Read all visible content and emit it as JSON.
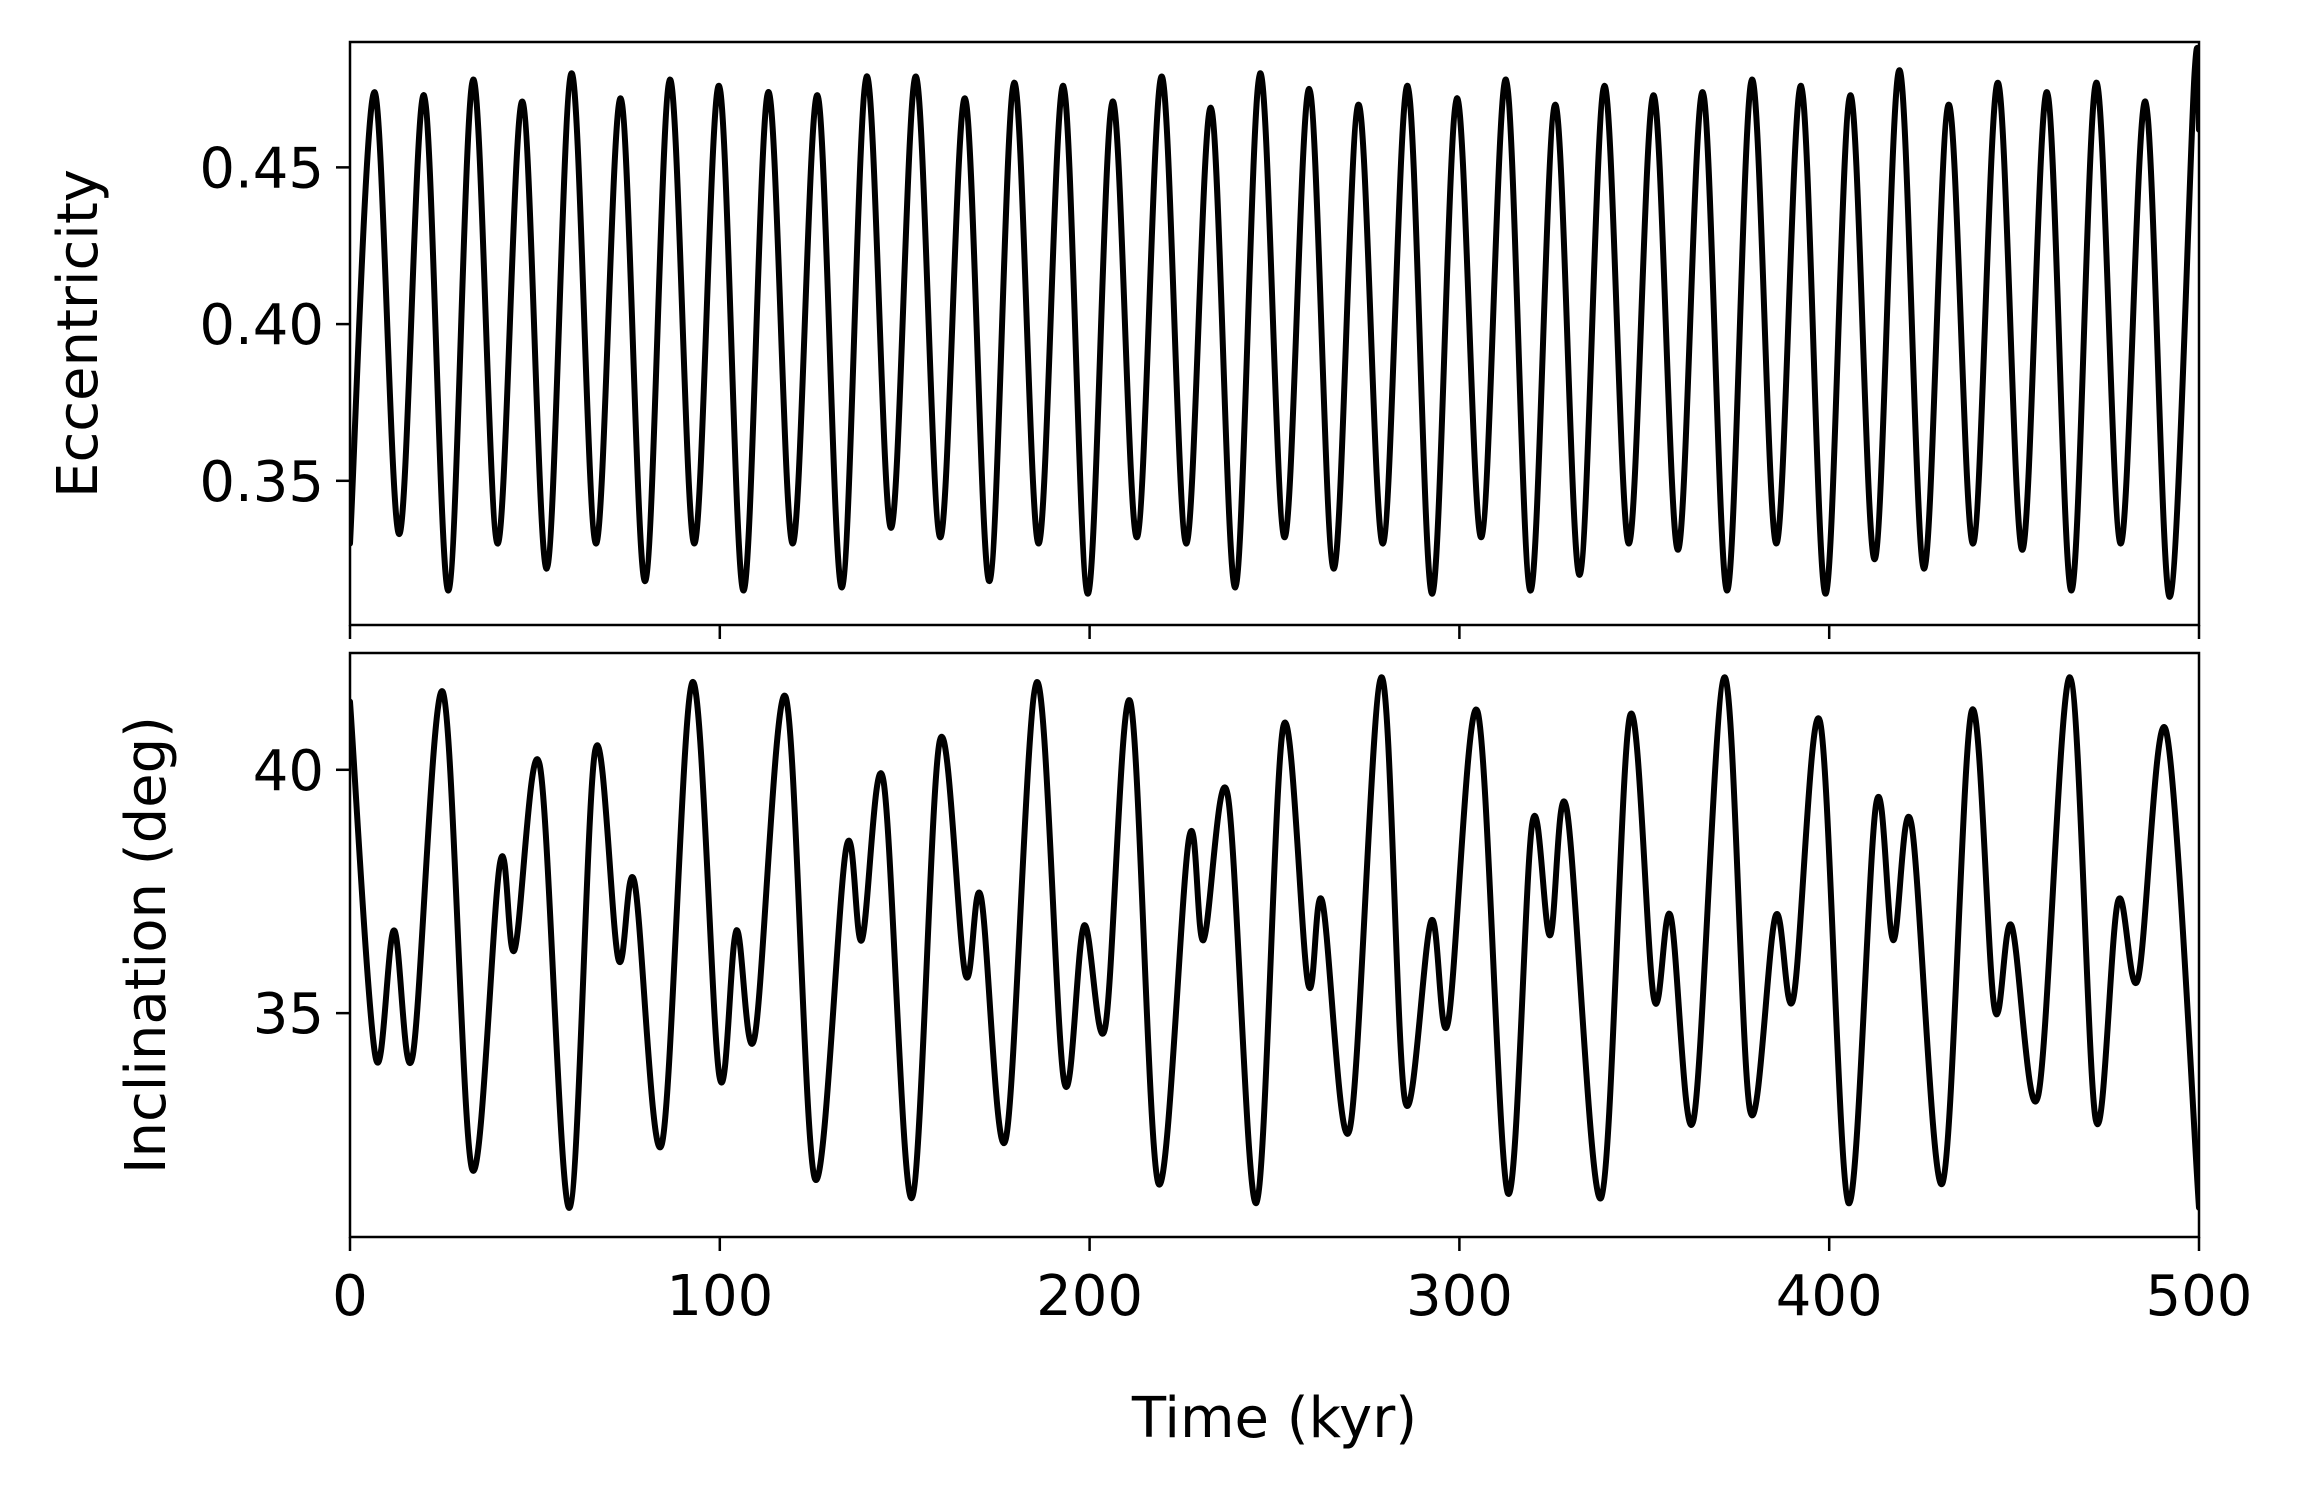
{
  "chart_data": [
    {
      "type": "line",
      "panel": "top",
      "title": "",
      "xlabel": "",
      "ylabel": "Eccentricity",
      "xlim": [
        0,
        500
      ],
      "ylim": [
        0.304,
        0.49
      ],
      "xticks": [
        0,
        100,
        200,
        300,
        400,
        500
      ],
      "show_xtick_labels": false,
      "yticks": [
        {
          "value": 0.35,
          "label": "0.35"
        },
        {
          "value": 0.4,
          "label": "0.40"
        },
        {
          "value": 0.45,
          "label": "0.45"
        }
      ],
      "grid": false,
      "line_color": "#000000",
      "description_of_data": "Rapid oscillation between about 0.31-0.335 (minima) and 0.47-0.48 (maxima) with a period of roughly 13.3 kyr; sampled points below trace the curve.",
      "series": [
        {
          "x": [
            0,
            6.6,
            13.3,
            20.0,
            26.6,
            33.3,
            39.9,
            46.6,
            53.2,
            59.9,
            66.5,
            73.2,
            79.8,
            86.5,
            93.1,
            99.8,
            106.4,
            113.1,
            119.7,
            126.4,
            133.0,
            139.7,
            146.3,
            153.0,
            159.6,
            166.3,
            172.9,
            179.6,
            186.2,
            192.9,
            199.5,
            206.2,
            212.8,
            219.5,
            226.1,
            232.8,
            239.4,
            246.1,
            252.7,
            259.4,
            266.0,
            272.7,
            279.3,
            286.0,
            292.6,
            299.3,
            305.9,
            312.6,
            319.2,
            325.9,
            332.5,
            339.2,
            345.8,
            352.5,
            359.1,
            365.8,
            372.4,
            379.1,
            385.7,
            392.4,
            399.0,
            405.7,
            412.3,
            419.0,
            425.6,
            432.3,
            438.9,
            445.6,
            452.2,
            458.9,
            465.5,
            472.2,
            478.8,
            485.5,
            492.1,
            498.8,
            500
          ],
          "y": [
            0.33,
            0.474,
            0.333,
            0.473,
            0.315,
            0.478,
            0.33,
            0.471,
            0.322,
            0.48,
            0.33,
            0.472,
            0.318,
            0.478,
            0.33,
            0.476,
            0.315,
            0.474,
            0.33,
            0.473,
            0.316,
            0.479,
            0.335,
            0.479,
            0.332,
            0.472,
            0.318,
            0.477,
            0.33,
            0.476,
            0.314,
            0.471,
            0.332,
            0.479,
            0.33,
            0.469,
            0.316,
            0.48,
            0.332,
            0.475,
            0.322,
            0.47,
            0.33,
            0.476,
            0.314,
            0.472,
            0.332,
            0.478,
            0.315,
            0.47,
            0.32,
            0.476,
            0.33,
            0.473,
            0.328,
            0.474,
            0.315,
            0.478,
            0.33,
            0.476,
            0.314,
            0.473,
            0.325,
            0.481,
            0.322,
            0.47,
            0.33,
            0.477,
            0.328,
            0.474,
            0.315,
            0.477,
            0.33,
            0.471,
            0.313,
            0.48,
            0.462
          ]
        }
      ]
    },
    {
      "type": "line",
      "panel": "bottom",
      "title": "",
      "xlabel": "Time (kyr)",
      "ylabel": "Inclination (deg)",
      "xlim": [
        0,
        500
      ],
      "ylim": [
        30.4,
        42.4
      ],
      "xticks": [
        {
          "value": 0,
          "label": "0"
        },
        {
          "value": 100,
          "label": "100"
        },
        {
          "value": 200,
          "label": "200"
        },
        {
          "value": 300,
          "label": "300"
        },
        {
          "value": 400,
          "label": "400"
        },
        {
          "value": 500,
          "label": "500"
        }
      ],
      "show_xtick_labels": true,
      "yticks": [
        {
          "value": 35,
          "label": "35"
        },
        {
          "value": 40,
          "label": "40"
        }
      ],
      "grid": false,
      "line_color": "#000000",
      "series": [
        {
          "x": [
            0,
            6.9,
            11.9,
            16.9,
            25.1,
            33.0,
            40.6,
            44.5,
            51.3,
            59.3,
            66.3,
            72.6,
            76.9,
            84.3,
            92.6,
            99.9,
            104.5,
            109.4,
            117.8,
            125.7,
            134.2,
            138.4,
            144.2,
            151.9,
            159.5,
            166.4,
            170.6,
            177.3,
            185.7,
            193.1,
            198.5,
            204.2,
            211.0,
            218.6,
            226.9,
            230.8,
            237.3,
            245.1,
            252.4,
            259.1,
            262.9,
            270.3,
            278.9,
            285.3,
            292.4,
            296.9,
            304.9,
            313.1,
            319.7,
            324.5,
            329.0,
            338.3,
            346.1,
            352.6,
            357.1,
            363.3,
            371.7,
            378.6,
            385.5,
            390.3,
            397.5,
            405.2,
            412.7,
            417.3,
            422.2,
            430.6,
            438.5,
            444.7,
            449.3,
            456.5,
            465.1,
            472.1,
            478.1,
            483.5,
            491.1,
            500
          ],
          "y": [
            41.4,
            34.1,
            36.7,
            34.1,
            41.6,
            31.8,
            38.1,
            36.3,
            40.1,
            31.0,
            40.4,
            36.1,
            37.7,
            32.3,
            41.8,
            33.7,
            36.7,
            34.5,
            41.5,
            31.6,
            38.4,
            36.5,
            39.8,
            31.2,
            40.6,
            35.8,
            37.4,
            32.4,
            41.8,
            33.6,
            36.8,
            34.7,
            41.4,
            31.5,
            38.6,
            36.5,
            39.5,
            31.1,
            40.9,
            35.6,
            37.3,
            32.6,
            41.9,
            33.2,
            36.9,
            34.8,
            41.2,
            31.3,
            38.9,
            36.6,
            39.2,
            31.2,
            41.1,
            35.3,
            37.0,
            32.8,
            41.9,
            33.0,
            37.0,
            35.3,
            41.0,
            31.1,
            39.3,
            36.5,
            38.9,
            31.5,
            41.2,
            35.1,
            36.8,
            33.3,
            41.9,
            32.8,
            37.3,
            35.7,
            40.8,
            31.0
          ]
        }
      ]
    }
  ]
}
